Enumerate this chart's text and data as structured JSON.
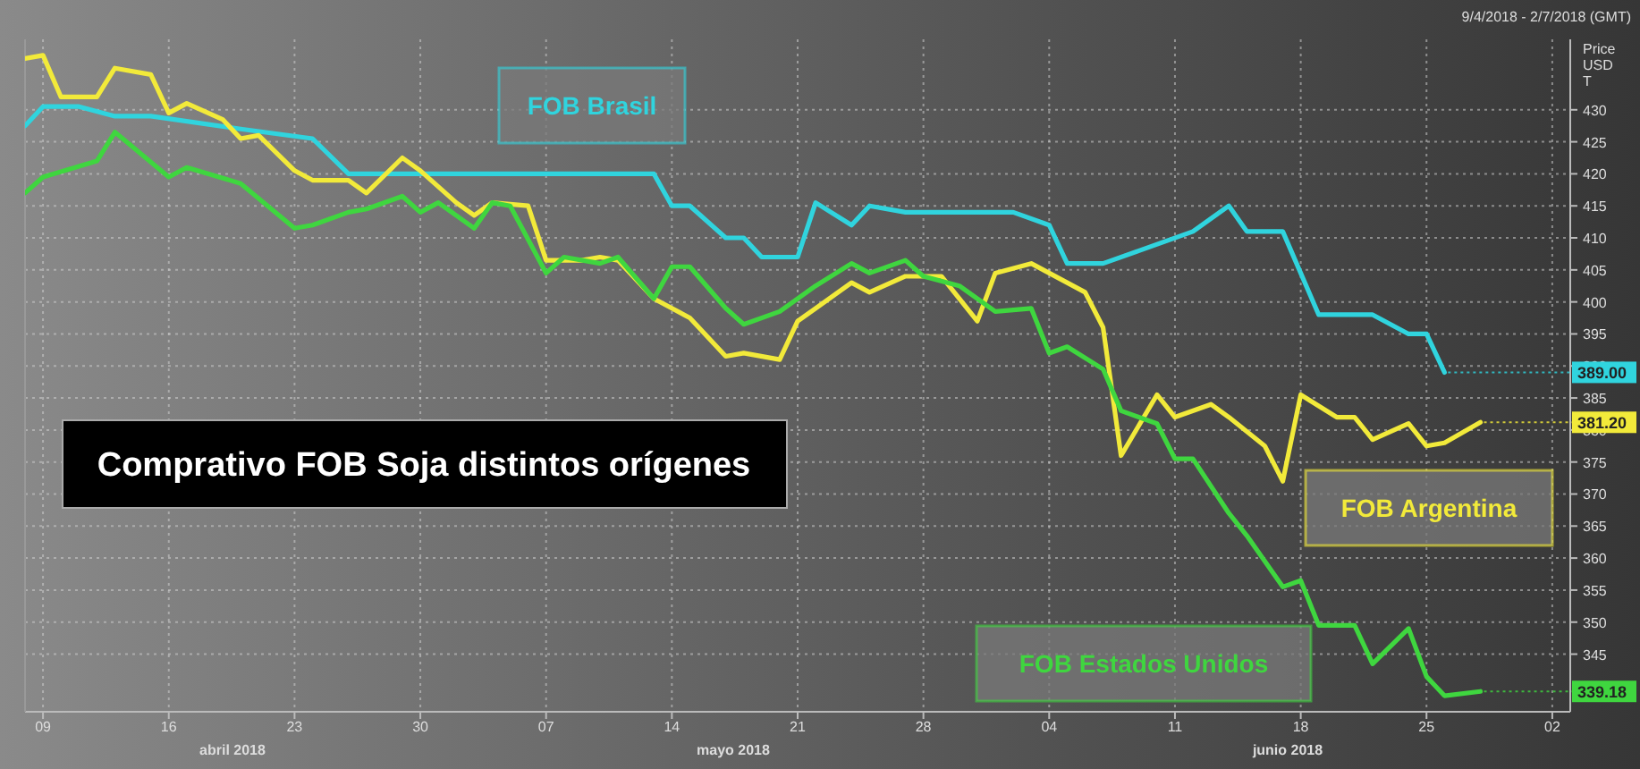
{
  "chart_data": {
    "type": "line",
    "title": "Comprativo FOB Soja distintos orígenes",
    "ylabel": "Price USD T",
    "xlim": [
      "2018-04-08",
      "2018-07-03"
    ],
    "xticks": [
      {
        "value": "2018-04-09",
        "label": "09"
      },
      {
        "value": "2018-04-16",
        "label": "16"
      },
      {
        "value": "2018-04-23",
        "label": "23"
      },
      {
        "value": "2018-04-30",
        "label": "30"
      },
      {
        "value": "2018-05-07",
        "label": "07"
      },
      {
        "value": "2018-05-14",
        "label": "14"
      },
      {
        "value": "2018-05-21",
        "label": "21"
      },
      {
        "value": "2018-05-28",
        "label": "28"
      },
      {
        "value": "2018-06-04",
        "label": "04"
      },
      {
        "value": "2018-06-11",
        "label": "11"
      },
      {
        "value": "2018-06-18",
        "label": "18"
      },
      {
        "value": "2018-06-25",
        "label": "25"
      },
      {
        "value": "2018-07-02",
        "label": "02"
      }
    ],
    "ylim": [
      336,
      441
    ],
    "yticks": [
      345,
      350,
      355,
      360,
      365,
      370,
      375,
      380,
      385,
      390,
      395,
      400,
      405,
      410,
      415,
      420,
      425,
      430
    ],
    "grid": true,
    "line_style": "solid",
    "marker": "none",
    "series": [
      {
        "name": "FOB Brasil",
        "color": "#30d4de",
        "x": [
          "2018-04-08",
          "2018-04-09",
          "2018-04-11",
          "2018-04-13",
          "2018-04-15",
          "2018-04-20",
          "2018-04-24",
          "2018-04-26",
          "2018-05-13",
          "2018-05-14",
          "2018-05-15",
          "2018-05-17",
          "2018-05-18",
          "2018-05-19",
          "2018-05-21",
          "2018-05-22",
          "2018-05-24",
          "2018-05-25",
          "2018-05-27",
          "2018-06-02",
          "2018-06-04",
          "2018-06-05",
          "2018-06-07",
          "2018-06-09",
          "2018-06-12",
          "2018-06-14",
          "2018-06-15",
          "2018-06-17",
          "2018-06-19",
          "2018-06-22",
          "2018-06-24",
          "2018-06-25",
          "2018-06-26"
        ],
        "values": [
          427.5,
          430.5,
          430.5,
          429,
          429,
          427,
          425.5,
          420,
          420,
          415,
          415,
          410,
          410,
          407,
          407,
          415.5,
          412,
          415,
          414,
          414,
          412,
          406,
          406,
          408,
          411,
          415,
          411,
          411,
          398,
          398,
          395,
          395,
          389
        ],
        "value_labels": [
          null,
          null,
          null,
          null,
          null,
          null,
          null,
          null,
          null,
          null,
          null,
          null,
          null,
          null,
          null,
          null,
          null,
          null,
          null,
          null,
          null,
          null,
          null,
          null,
          null,
          null,
          null,
          null,
          null,
          null,
          null,
          null,
          "389.00"
        ]
      },
      {
        "name": "FOB Argentina",
        "color": "#f2ea3a",
        "x": [
          "2018-04-08",
          "2018-04-09",
          "2018-04-10",
          "2018-04-12",
          "2018-04-13",
          "2018-04-15",
          "2018-04-16",
          "2018-04-17",
          "2018-04-19",
          "2018-04-20",
          "2018-04-21",
          "2018-04-23",
          "2018-04-24",
          "2018-04-26",
          "2018-04-27",
          "2018-04-29",
          "2018-04-30",
          "2018-05-02",
          "2018-05-03",
          "2018-05-04",
          "2018-05-06",
          "2018-05-07",
          "2018-05-09",
          "2018-05-10",
          "2018-05-11",
          "2018-05-13",
          "2018-05-14",
          "2018-05-15",
          "2018-05-17",
          "2018-05-18",
          "2018-05-20",
          "2018-05-21",
          "2018-05-22",
          "2018-05-24",
          "2018-05-25",
          "2018-05-27",
          "2018-05-29",
          "2018-05-31",
          "2018-06-01",
          "2018-06-03",
          "2018-06-04",
          "2018-06-06",
          "2018-06-07",
          "2018-06-08",
          "2018-06-10",
          "2018-06-11",
          "2018-06-13",
          "2018-06-14",
          "2018-06-16",
          "2018-06-17",
          "2018-06-18",
          "2018-06-20",
          "2018-06-21",
          "2018-06-22",
          "2018-06-24",
          "2018-06-25",
          "2018-06-26",
          "2018-06-28"
        ],
        "values": [
          438,
          438.5,
          432,
          432,
          436.5,
          435.5,
          429.5,
          431,
          428.5,
          425.5,
          426,
          420.5,
          419,
          419,
          417,
          422.5,
          420.5,
          415.5,
          413.5,
          415.5,
          415,
          406.5,
          406.5,
          407,
          406.5,
          400.5,
          399,
          397.5,
          391.5,
          392,
          391,
          397,
          399,
          403,
          401.5,
          404,
          404,
          397,
          404.5,
          406,
          404.5,
          401.5,
          396,
          376,
          385.5,
          382,
          384,
          382,
          377.5,
          372,
          385.5,
          382,
          382,
          378.5,
          381,
          377.5,
          378,
          381.2
        ],
        "value_labels": [
          null,
          null,
          null,
          null,
          null,
          null,
          null,
          null,
          null,
          null,
          null,
          null,
          null,
          null,
          null,
          null,
          null,
          null,
          null,
          null,
          null,
          null,
          null,
          null,
          null,
          null,
          null,
          null,
          null,
          null,
          null,
          null,
          null,
          null,
          null,
          null,
          null,
          null,
          null,
          null,
          null,
          null,
          null,
          null,
          null,
          null,
          null,
          null,
          null,
          null,
          null,
          null,
          null,
          null,
          null,
          null,
          null,
          "381.20"
        ]
      },
      {
        "name": "FOB Estados Unidos",
        "color": "#3fd63f",
        "x": [
          "2018-04-08",
          "2018-04-09",
          "2018-04-12",
          "2018-04-13",
          "2018-04-16",
          "2018-04-17",
          "2018-04-20",
          "2018-04-23",
          "2018-04-24",
          "2018-04-26",
          "2018-04-27",
          "2018-04-29",
          "2018-04-30",
          "2018-05-01",
          "2018-05-03",
          "2018-05-04",
          "2018-05-05",
          "2018-05-07",
          "2018-05-08",
          "2018-05-10",
          "2018-05-11",
          "2018-05-13",
          "2018-05-14",
          "2018-05-15",
          "2018-05-17",
          "2018-05-18",
          "2018-05-20",
          "2018-05-22",
          "2018-05-24",
          "2018-05-25",
          "2018-05-27",
          "2018-05-28",
          "2018-05-30",
          "2018-06-01",
          "2018-06-03",
          "2018-06-04",
          "2018-06-05",
          "2018-06-07",
          "2018-06-08",
          "2018-06-10",
          "2018-06-11",
          "2018-06-12",
          "2018-06-14",
          "2018-06-15",
          "2018-06-17",
          "2018-06-18",
          "2018-06-19",
          "2018-06-21",
          "2018-06-22",
          "2018-06-24",
          "2018-06-25",
          "2018-06-26",
          "2018-06-28"
        ],
        "values": [
          417,
          419.5,
          422,
          426.5,
          419.5,
          421,
          418.5,
          411.5,
          412,
          414,
          414.5,
          416.5,
          414,
          415.5,
          411.5,
          415.5,
          415,
          404.5,
          407,
          406,
          407,
          400.5,
          405.5,
          405.5,
          399,
          396.5,
          398.5,
          402.5,
          406,
          404.5,
          406.5,
          404,
          402.5,
          398.5,
          399,
          392,
          393,
          389.5,
          383,
          381,
          375.5,
          375.5,
          367,
          363.5,
          355.5,
          356.5,
          349.5,
          349.5,
          343.5,
          349,
          341.5,
          338.5,
          339.18
        ],
        "value_labels": [
          null,
          null,
          null,
          null,
          null,
          null,
          null,
          null,
          null,
          null,
          null,
          null,
          null,
          null,
          null,
          null,
          null,
          null,
          null,
          null,
          null,
          null,
          null,
          null,
          null,
          null,
          null,
          null,
          null,
          null,
          null,
          null,
          null,
          null,
          null,
          null,
          null,
          null,
          null,
          null,
          null,
          null,
          null,
          null,
          null,
          null,
          null,
          null,
          null,
          null,
          null,
          null,
          "339.18"
        ]
      }
    ],
    "annotations": [
      "abril 2018",
      "mayo 2018",
      "junio 2018",
      "9/4/2018 - 2/7/2018 (GMT)"
    ]
  }
}
